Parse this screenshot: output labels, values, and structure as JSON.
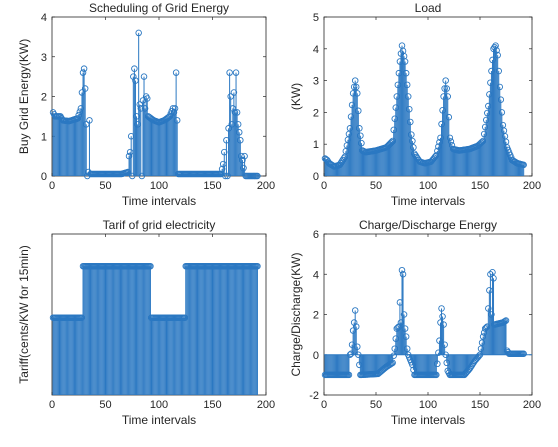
{
  "colors": {
    "stem": "#2b78c2",
    "marker": "#2b78c2",
    "axis": "#262626",
    "background": "#ffffff"
  },
  "chart_data": [
    {
      "type": "stem",
      "title": "Scheduling of Grid Energy",
      "xlabel": "Time intervals",
      "ylabel": "Buy Grid Energy(KW)",
      "xlim": [
        0,
        200
      ],
      "ylim": [
        0,
        4
      ],
      "xticks": [
        "0",
        "50",
        "100",
        "150",
        "200"
      ],
      "yticks": [
        "0",
        "1",
        "2",
        "3",
        "4"
      ],
      "x_start": 1,
      "segments": [
        [
          1,
          1.6
        ],
        [
          3,
          1.5
        ],
        [
          8,
          1.5
        ],
        [
          10,
          1.4
        ],
        [
          16,
          1.38
        ],
        [
          24,
          1.45
        ],
        [
          27,
          1.7
        ],
        [
          28,
          2.1
        ],
        [
          29,
          2.6
        ],
        [
          30,
          2.7
        ],
        [
          31,
          2.2
        ],
        [
          32,
          1.3
        ],
        [
          33,
          0.0
        ],
        [
          34,
          0.1
        ],
        [
          35,
          1.4
        ],
        [
          36,
          0.05
        ],
        [
          40,
          0.05
        ],
        [
          65,
          0.05
        ],
        [
          71,
          0.1
        ],
        [
          72,
          0.5
        ],
        [
          73,
          0.6
        ],
        [
          74,
          1.0
        ],
        [
          75,
          0.0
        ],
        [
          76,
          2.5
        ],
        [
          77,
          2.7
        ],
        [
          78,
          2.4
        ],
        [
          79,
          1.5
        ],
        [
          80,
          1.3
        ],
        [
          81,
          3.6
        ],
        [
          82,
          1.8
        ],
        [
          83,
          1.7
        ],
        [
          84,
          0.0
        ],
        [
          85,
          1.9
        ],
        [
          86,
          2.5
        ],
        [
          87,
          1.7
        ],
        [
          88,
          2.0
        ],
        [
          89,
          1.95
        ],
        [
          90,
          1.5
        ],
        [
          95,
          1.4
        ],
        [
          100,
          1.35
        ],
        [
          105,
          1.4
        ],
        [
          110,
          1.5
        ],
        [
          113,
          1.7
        ],
        [
          114,
          1.6
        ],
        [
          115,
          1.7
        ],
        [
          116,
          2.6
        ],
        [
          117,
          1.4
        ],
        [
          118,
          0.05
        ],
        [
          122,
          0.05
        ],
        [
          150,
          0.05
        ],
        [
          158,
          0.05
        ],
        [
          160,
          0.3
        ],
        [
          161,
          0.6
        ],
        [
          162,
          0.0
        ],
        [
          163,
          0.9
        ],
        [
          164,
          0.0
        ],
        [
          165,
          1.2
        ],
        [
          166,
          2.6
        ],
        [
          167,
          2.0
        ],
        [
          168,
          1.3
        ],
        [
          170,
          2.1
        ],
        [
          171,
          1.6
        ],
        [
          172,
          2.6
        ],
        [
          173,
          1.6
        ],
        [
          174,
          1.3
        ],
        [
          175,
          1.1
        ],
        [
          176,
          0.9
        ],
        [
          177,
          0.5
        ],
        [
          178,
          0.4
        ],
        [
          179,
          0.2
        ],
        [
          180,
          0.5
        ],
        [
          181,
          0.0
        ],
        [
          192,
          0.0
        ]
      ]
    },
    {
      "type": "stem",
      "title": "Load",
      "xlabel": "Time intervals",
      "ylabel": "(KW)",
      "xlim": [
        0,
        200
      ],
      "ylim": [
        0,
        5
      ],
      "xticks": [
        "0",
        "50",
        "100",
        "150",
        "200"
      ],
      "yticks": [
        "0",
        "1",
        "2",
        "3",
        "4",
        "5"
      ],
      "x_start": 1,
      "segments": [
        [
          1,
          0.55
        ],
        [
          3,
          0.5
        ],
        [
          5,
          0.4
        ],
        [
          10,
          0.3
        ],
        [
          15,
          0.35
        ],
        [
          20,
          0.6
        ],
        [
          25,
          1.5
        ],
        [
          28,
          2.6
        ],
        [
          30,
          3.0
        ],
        [
          32,
          2.6
        ],
        [
          34,
          1.5
        ],
        [
          37,
          0.8
        ],
        [
          40,
          0.75
        ],
        [
          50,
          0.8
        ],
        [
          60,
          0.9
        ],
        [
          66,
          1.1
        ],
        [
          70,
          2.5
        ],
        [
          73,
          3.6
        ],
        [
          75,
          4.1
        ],
        [
          78,
          3.6
        ],
        [
          81,
          2.5
        ],
        [
          84,
          1.3
        ],
        [
          87,
          0.7
        ],
        [
          92,
          0.45
        ],
        [
          97,
          0.4
        ],
        [
          103,
          0.45
        ],
        [
          108,
          0.65
        ],
        [
          112,
          1.2
        ],
        [
          115,
          2.5
        ],
        [
          117,
          3.0
        ],
        [
          119,
          2.5
        ],
        [
          121,
          1.2
        ],
        [
          124,
          0.85
        ],
        [
          130,
          0.8
        ],
        [
          140,
          0.85
        ],
        [
          148,
          0.95
        ],
        [
          153,
          1.1
        ],
        [
          158,
          2.2
        ],
        [
          161,
          3.3
        ],
        [
          163,
          4.0
        ],
        [
          165,
          4.1
        ],
        [
          167,
          3.8
        ],
        [
          169,
          2.8
        ],
        [
          172,
          1.6
        ],
        [
          176,
          0.9
        ],
        [
          181,
          0.5
        ],
        [
          186,
          0.4
        ],
        [
          192,
          0.35
        ]
      ]
    },
    {
      "type": "stem",
      "title": "Tarif of grid electricity",
      "xlabel": "Time intervals",
      "ylabel": "Tariff(cents/KW for 15min)",
      "xlim": [
        0,
        200
      ],
      "ylim": [
        0,
        5
      ],
      "xticks": [
        "0",
        "50",
        "100",
        "150",
        "200"
      ],
      "yticks": [],
      "x_start": 1,
      "segments": [
        [
          1,
          2.4
        ],
        [
          28,
          2.4
        ],
        [
          29,
          4.0
        ],
        [
          92,
          4.0
        ],
        [
          93,
          2.4
        ],
        [
          124,
          2.4
        ],
        [
          125,
          4.0
        ],
        [
          192,
          4.0
        ]
      ]
    },
    {
      "type": "stem",
      "title": "Charge/Discharge Energy",
      "xlabel": "Time intervals",
      "ylabel": "Charge/Discharge(KW)",
      "xlim": [
        0,
        200
      ],
      "ylim": [
        -2,
        6
      ],
      "xticks": [
        "0",
        "50",
        "100",
        "150",
        "200"
      ],
      "yticks": [
        "-2",
        "0",
        "2",
        "4",
        "6"
      ],
      "x_start": 1,
      "segments": [
        [
          1,
          -1.0
        ],
        [
          24,
          -1.0
        ],
        [
          25,
          0.0
        ],
        [
          26,
          0.05
        ],
        [
          27,
          0.5
        ],
        [
          28,
          1.2
        ],
        [
          29,
          1.6
        ],
        [
          30,
          2.2
        ],
        [
          31,
          1.4
        ],
        [
          32,
          0.4
        ],
        [
          33,
          0.0
        ],
        [
          34,
          -0.5
        ],
        [
          35,
          -1.0
        ],
        [
          36,
          -1.0
        ],
        [
          52,
          -0.95
        ],
        [
          60,
          -0.6
        ],
        [
          66,
          -0.4
        ],
        [
          68,
          0.3
        ],
        [
          70,
          1.3
        ],
        [
          72,
          1.4
        ],
        [
          73,
          2.6
        ],
        [
          74,
          1.6
        ],
        [
          75,
          4.2
        ],
        [
          76,
          4.0
        ],
        [
          77,
          2.0
        ],
        [
          78,
          1.3
        ],
        [
          79,
          0.9
        ],
        [
          80,
          0.3
        ],
        [
          81,
          0.0
        ],
        [
          85,
          -0.5
        ],
        [
          87,
          -1.0
        ],
        [
          108,
          -1.0
        ],
        [
          110,
          0.1
        ],
        [
          111,
          0.7
        ],
        [
          112,
          1.6
        ],
        [
          113,
          2.3
        ],
        [
          114,
          1.9
        ],
        [
          115,
          1.5
        ],
        [
          116,
          0.5
        ],
        [
          117,
          0.0
        ],
        [
          119,
          -0.8
        ],
        [
          121,
          -1.0
        ],
        [
          135,
          -1.0
        ],
        [
          140,
          -0.7
        ],
        [
          145,
          -0.3
        ],
        [
          150,
          0.0
        ],
        [
          153,
          0.9
        ],
        [
          155,
          1.3
        ],
        [
          157,
          1.4
        ],
        [
          159,
          3.2
        ],
        [
          160,
          4.0
        ],
        [
          161,
          2.0
        ],
        [
          162,
          4.1
        ],
        [
          163,
          3.8
        ],
        [
          164,
          1.5
        ],
        [
          168,
          1.55
        ],
        [
          172,
          1.6
        ],
        [
          175,
          1.7
        ],
        [
          176,
          0.2
        ],
        [
          178,
          0.05
        ],
        [
          192,
          0.05
        ]
      ]
    }
  ]
}
